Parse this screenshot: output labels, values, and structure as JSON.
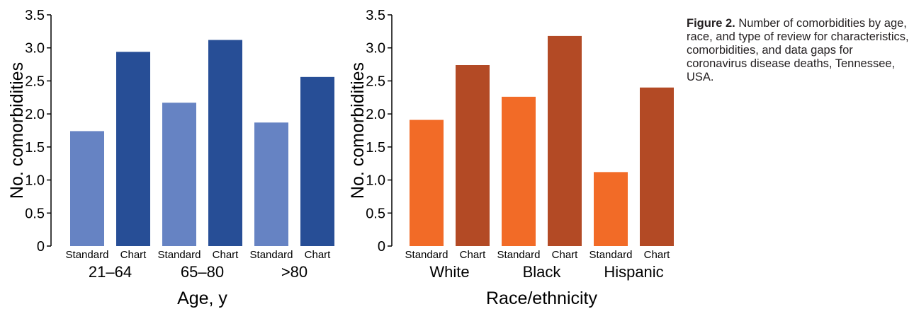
{
  "chart_data": [
    {
      "type": "bar",
      "xlabel": "Age, y",
      "ylabel": "No. comorbidities",
      "ylim": [
        0,
        3.5
      ],
      "yticks": [
        "0",
        "0.5",
        "1.0",
        "1.5",
        "2.0",
        "2.5",
        "3.0",
        "3.5"
      ],
      "grid": false,
      "groups": [
        "21–64",
        "65–80",
        ">80"
      ],
      "categories": [
        "Standard",
        "Chart",
        "Standard",
        "Chart",
        "Standard",
        "Chart"
      ],
      "values": [
        1.74,
        2.94,
        2.17,
        3.12,
        1.87,
        2.56
      ],
      "colors": [
        "#6683c3",
        "#274e96",
        "#6683c3",
        "#274e96",
        "#6683c3",
        "#274e96"
      ]
    },
    {
      "type": "bar",
      "xlabel": "Race/ethnicity",
      "ylabel": "No. comorbidities",
      "ylim": [
        0,
        3.5
      ],
      "yticks": [
        "0",
        "0.5",
        "1.0",
        "1.5",
        "2.0",
        "2.5",
        "3.0",
        "3.5"
      ],
      "grid": false,
      "groups": [
        "White",
        "Black",
        "Hispanic"
      ],
      "categories": [
        "Standard",
        "Chart",
        "Standard",
        "Chart",
        "Standard",
        "Chart"
      ],
      "values": [
        1.91,
        2.74,
        2.26,
        3.18,
        1.12,
        2.4
      ],
      "colors": [
        "#f26b27",
        "#b34a25",
        "#f26b27",
        "#b34a25",
        "#f26b27",
        "#b34a25"
      ]
    }
  ],
  "caption": {
    "label": "Figure 2.",
    "text": " Number of comorbidities by age, race, and type of review for characteristics, comorbidities, and data gaps for coronavirus disease deaths, Tennessee, USA."
  }
}
